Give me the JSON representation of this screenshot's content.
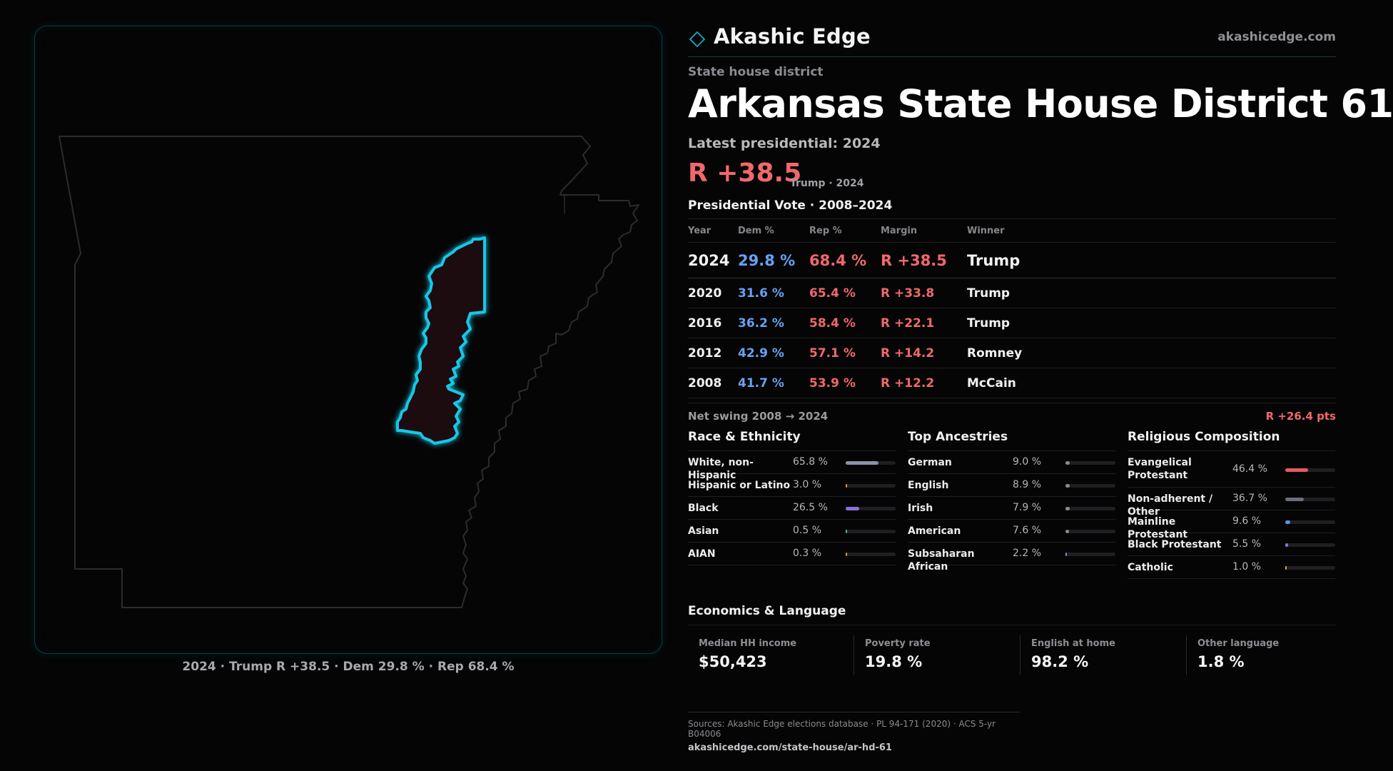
{
  "brand": {
    "name": "Akashic Edge",
    "url": "akashicedge.com"
  },
  "header": {
    "kicker": "State house district",
    "title": "Arkansas State House District 61",
    "latest_label": "Latest presidential: 2024",
    "margin": "R +38.5",
    "margin_sub": "Trump · 2024"
  },
  "vote": {
    "title": "Presidential Vote · 2008–2024",
    "columns": [
      "Year",
      "Dem %",
      "Rep %",
      "Margin",
      "Winner"
    ],
    "rows": [
      {
        "year": "2024",
        "dem": "29.8 %",
        "rep": "68.4 %",
        "margin": "R +38.5",
        "winner": "Trump"
      },
      {
        "year": "2020",
        "dem": "31.6 %",
        "rep": "65.4 %",
        "margin": "R +33.8",
        "winner": "Trump"
      },
      {
        "year": "2016",
        "dem": "36.2 %",
        "rep": "58.4 %",
        "margin": "R +22.1",
        "winner": "Trump"
      },
      {
        "year": "2012",
        "dem": "42.9 %",
        "rep": "57.1 %",
        "margin": "R +14.2",
        "winner": "Romney"
      },
      {
        "year": "2008",
        "dem": "41.7 %",
        "rep": "53.9 %",
        "margin": "R +12.2",
        "winner": "McCain"
      }
    ],
    "swing_label": "Net swing 2008 → 2024",
    "swing_value": "R +26.4 pts"
  },
  "race": {
    "title": "Race & Ethnicity",
    "items": [
      {
        "label": "White, non-Hispanic",
        "pct": "65.8 %",
        "value": 65.8,
        "color": "#8a93a6"
      },
      {
        "label": "Hispanic or Latino",
        "pct": "3.0 %",
        "value": 3.0,
        "color": "#f08a3c"
      },
      {
        "label": "Black",
        "pct": "26.5 %",
        "value": 26.5,
        "color": "#8c6fe0"
      },
      {
        "label": "Asian",
        "pct": "0.5 %",
        "value": 0.5,
        "color": "#47b6a8"
      },
      {
        "label": "AIAN",
        "pct": "0.3 %",
        "value": 0.3,
        "color": "#c99a4a"
      }
    ]
  },
  "ancestry": {
    "title": "Top Ancestries",
    "items": [
      {
        "label": "German",
        "pct": "9.0 %",
        "value": 9.0,
        "color": "#8a8a90"
      },
      {
        "label": "English",
        "pct": "8.9 %",
        "value": 8.9,
        "color": "#8a8a90"
      },
      {
        "label": "Irish",
        "pct": "7.9 %",
        "value": 7.9,
        "color": "#8a8a90"
      },
      {
        "label": "American",
        "pct": "7.6 %",
        "value": 7.6,
        "color": "#8a8a90"
      },
      {
        "label": "Subsaharan African",
        "pct": "2.2 %",
        "value": 2.2,
        "color": "#6f8fd8"
      }
    ]
  },
  "religion": {
    "title": "Religious Composition",
    "items": [
      {
        "label": "Evangelical Protestant",
        "pct": "46.4 %",
        "value": 46.4,
        "color": "#e8595e"
      },
      {
        "label": "Non-adherent / Other",
        "pct": "36.7 %",
        "value": 36.7,
        "color": "#6b6f7c"
      },
      {
        "label": "Mainline Protestant",
        "pct": "9.6 %",
        "value": 9.6,
        "color": "#5f93e8"
      },
      {
        "label": "Black Protestant",
        "pct": "5.5 %",
        "value": 5.5,
        "color": "#8c6fe0"
      },
      {
        "label": "Catholic",
        "pct": "1.0 %",
        "value": 1.0,
        "color": "#d9b13a"
      }
    ]
  },
  "economics": {
    "title": "Economics & Language",
    "cells": [
      {
        "label": "Median HH income",
        "value": "$50,423"
      },
      {
        "label": "Poverty rate",
        "value": "19.8 %"
      },
      {
        "label": "English at home",
        "value": "98.2 %"
      },
      {
        "label": "Other language",
        "value": "1.8 %"
      }
    ]
  },
  "map": {
    "caption": "2024 · Trump R +38.5 · Dem 29.8 % · Rep 68.4 %",
    "state_outline_color": "#2c2c2f",
    "district_stroke": "#19c6e6",
    "district_fill": "#1c0b0f"
  },
  "footer": {
    "sources": "Sources: Akashic Edge elections database · PL 94-171 (2020) · ACS 5-yr B04006",
    "url": "akashicedge.com/state-house/ar-hd-61"
  }
}
